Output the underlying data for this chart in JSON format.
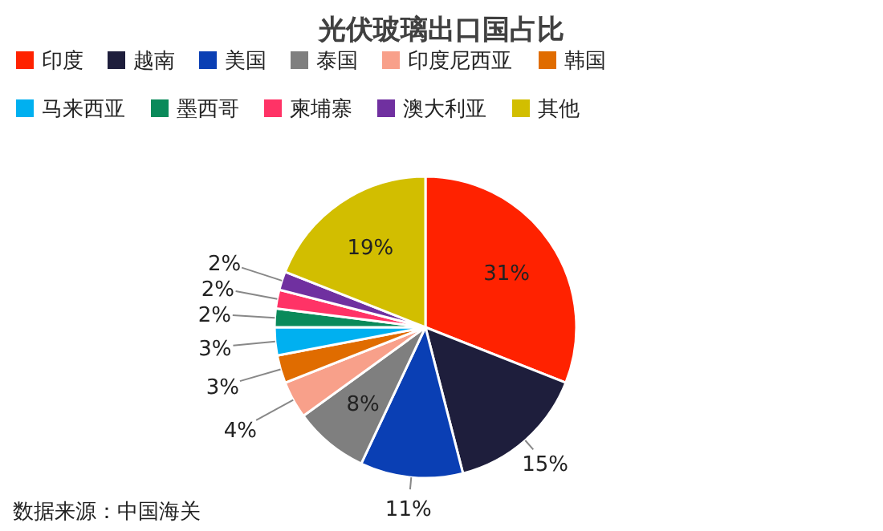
{
  "chart_data": {
    "type": "pie",
    "title": "光伏玻璃出口国占比",
    "categories": [
      "印度",
      "越南",
      "美国",
      "泰国",
      "印度尼西亚",
      "韩国",
      "马来西亚",
      "墨西哥",
      "柬埔寨",
      "澳大利亚",
      "其他"
    ],
    "values": [
      31,
      15,
      11,
      8,
      4,
      3,
      3,
      2,
      2,
      2,
      19
    ],
    "colors": [
      "#ff2200",
      "#1e1e3c",
      "#0a3fb4",
      "#7f7f7f",
      "#f8a08a",
      "#e06c00",
      "#00b0f0",
      "#0a8a5a",
      "#ff3366",
      "#7030a0",
      "#d2be00"
    ],
    "value_labels": [
      "31%",
      "15%",
      "11%",
      "8%",
      "4%",
      "3%",
      "3%",
      "2%",
      "2%",
      "2%",
      "19%"
    ],
    "legend": "top",
    "annotations": [
      "数据来源：中国海关"
    ]
  }
}
